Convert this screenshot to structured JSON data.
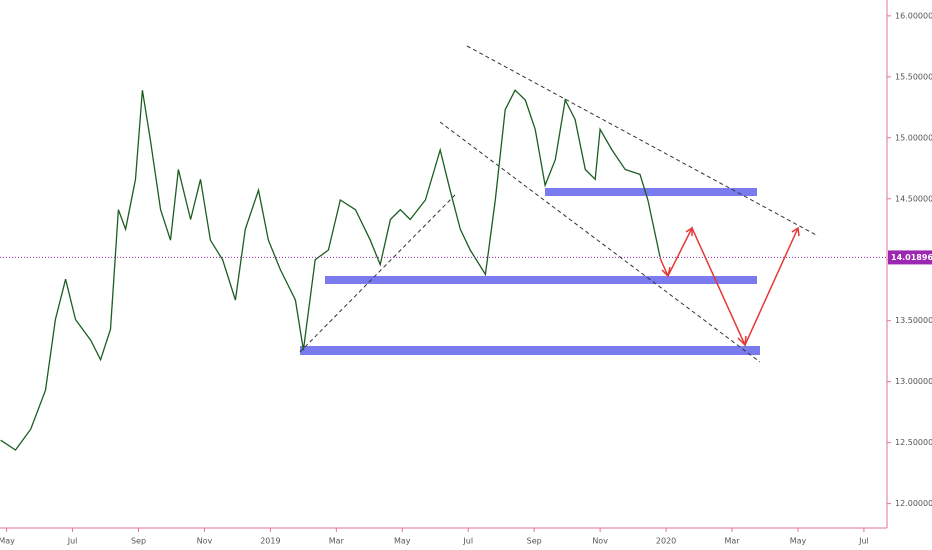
{
  "chart_data": {
    "type": "line",
    "x": [
      -0.18,
      0.27,
      0.73,
      1.18,
      1.48,
      1.79,
      2.09,
      2.55,
      2.85,
      3.15,
      3.39,
      3.61,
      3.91,
      4.12,
      4.36,
      4.67,
      4.97,
      5.21,
      5.58,
      5.88,
      6.18,
      6.55,
      6.94,
      7.24,
      7.64,
      7.94,
      8.3,
      8.76,
      9.0,
      9.36,
      9.76,
      10.12,
      10.58,
      11.03,
      11.33,
      11.64,
      11.94,
      12.24,
      12.7,
      13.15,
      13.45,
      13.76,
      14.06,
      14.52,
      14.82,
      15.12,
      15.42,
      15.73,
      16.03,
      16.33,
      16.64,
      16.94,
      17.24,
      17.55,
      17.85,
      18.0,
      18.36,
      18.76,
      19.21,
      19.45,
      19.82
    ],
    "values": [
      12.52,
      12.44,
      12.61,
      12.93,
      13.51,
      13.84,
      13.51,
      13.34,
      13.18,
      13.43,
      14.41,
      14.25,
      14.66,
      15.39,
      14.98,
      14.41,
      14.16,
      14.74,
      14.33,
      14.66,
      14.16,
      14.0,
      13.67,
      14.25,
      14.57,
      14.16,
      13.92,
      13.67,
      13.26,
      14.0,
      14.08,
      14.49,
      14.41,
      14.16,
      13.96,
      14.33,
      14.41,
      14.33,
      14.49,
      14.9,
      14.57,
      14.25,
      14.08,
      13.88,
      14.49,
      15.23,
      15.39,
      15.31,
      15.07,
      14.61,
      14.82,
      15.31,
      15.15,
      14.74,
      14.66,
      15.07,
      14.9,
      14.74,
      14.7,
      14.49,
      14.02
    ],
    "color": "#1b5e20",
    "last_price": 14.01896,
    "xlim": [
      -0.2,
      26.7
    ],
    "xticks": [
      {
        "value": 0,
        "label": "May"
      },
      {
        "value": 2,
        "label": "Jul"
      },
      {
        "value": 4,
        "label": "Sep"
      },
      {
        "value": 6,
        "label": "Nov"
      },
      {
        "value": 8,
        "label": "2019"
      },
      {
        "value": 10,
        "label": "Mar"
      },
      {
        "value": 12,
        "label": "May"
      },
      {
        "value": 14,
        "label": "Jul"
      },
      {
        "value": 16,
        "label": "Sep"
      },
      {
        "value": 18,
        "label": "Nov"
      },
      {
        "value": 20,
        "label": "2020"
      },
      {
        "value": 22,
        "label": "Mar"
      },
      {
        "value": 24,
        "label": "May"
      },
      {
        "value": 26,
        "label": "Jul"
      }
    ],
    "ylim": [
      11.8,
      16.13
    ],
    "yticks": [
      {
        "value": 12,
        "label": "12.00000"
      },
      {
        "value": 12.5,
        "label": "12.50000"
      },
      {
        "value": 13,
        "label": "13.00000"
      },
      {
        "value": 13.5,
        "label": "13.50000"
      },
      {
        "value": 14,
        "label": "14.00000"
      },
      {
        "value": 14.5,
        "label": "14.50000"
      },
      {
        "value": 15,
        "label": "15.00000"
      },
      {
        "value": 15.5,
        "label": "15.50000"
      },
      {
        "value": 16,
        "label": "16.00000"
      }
    ],
    "grid": false
  }
}
